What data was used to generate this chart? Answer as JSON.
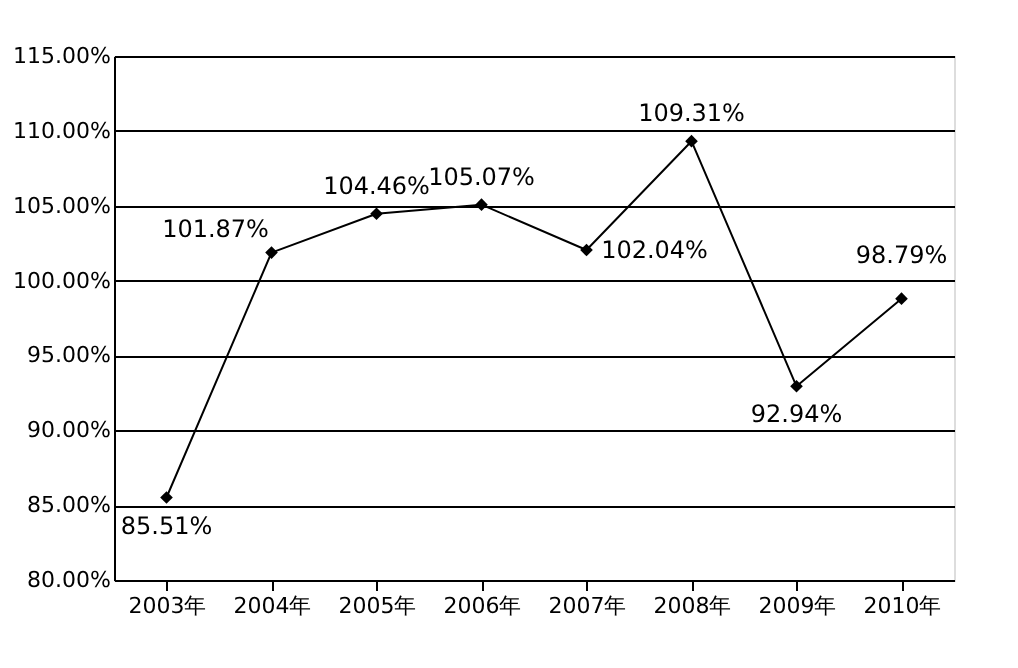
{
  "chart_data": {
    "type": "line",
    "categories": [
      "2003年",
      "2004年",
      "2005年",
      "2006年",
      "2007年",
      "2008年",
      "2009年",
      "2010年"
    ],
    "series": [
      {
        "color": "#000000",
        "values": [
          85.51,
          101.87,
          104.46,
          105.07,
          102.04,
          109.31,
          92.94,
          98.79
        ],
        "value_labels": [
          "85.51%",
          "101.87%",
          "104.46%",
          "105.07%",
          "102.04%",
          "109.31%",
          "92.94%",
          "98.79%"
        ]
      }
    ],
    "ylim": [
      80,
      115
    ],
    "yticks": [
      {
        "value": 80,
        "label": "80.00%"
      },
      {
        "value": 85,
        "label": "85.00%"
      },
      {
        "value": 90,
        "label": "90.00%"
      },
      {
        "value": 95,
        "label": "95.00%"
      },
      {
        "value": 100,
        "label": "100.00%"
      },
      {
        "value": 105,
        "label": "105.00%"
      },
      {
        "value": 110,
        "label": "110.00%"
      },
      {
        "value": 115,
        "label": "115.00%"
      }
    ],
    "grid": "y",
    "marker": "diamond",
    "line_style": "solid"
  }
}
